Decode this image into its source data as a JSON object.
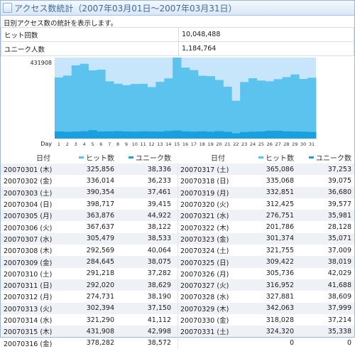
{
  "title": "アクセス数統計（2007年03月01日～2007年03月31日）",
  "description": "日別アクセス数の統計を表示します。",
  "summary": [
    {
      "label": "ヒット回数",
      "value": "10,048,488"
    },
    {
      "label": "ユニーク人数",
      "value": "1,184,764"
    }
  ],
  "colors": {
    "hits": "#5cc3ee",
    "uniques": "#1aa0de",
    "plot_bg": "#c7e6fb"
  },
  "chart_data": {
    "type": "bar",
    "ymax_label": "431908",
    "xlabel": "Day",
    "ylim": [
      0,
      431908
    ],
    "categories": [
      "1",
      "2",
      "3",
      "4",
      "5",
      "6",
      "7",
      "8",
      "9",
      "10",
      "11",
      "12",
      "13",
      "14",
      "15",
      "16",
      "17",
      "18",
      "19",
      "20",
      "21",
      "22",
      "23",
      "24",
      "25",
      "26",
      "27",
      "28",
      "29",
      "30",
      "31"
    ],
    "series": [
      {
        "key": "hits",
        "values": [
          325856,
          336014,
          390354,
          398717,
          363876,
          367637,
          305479,
          292569,
          284645,
          291218,
          292020,
          274731,
          302394,
          321290,
          431908,
          378282,
          365086,
          335068,
          332851,
          312425,
          276751,
          201786,
          301374,
          321755,
          309422,
          305736,
          316952,
          327881,
          342063,
          318028,
          324320
        ]
      },
      {
        "key": "uniques",
        "values": [
          38336,
          36233,
          37461,
          39415,
          44922,
          38122,
          38533,
          40064,
          38075,
          37282,
          38629,
          38190,
          37150,
          41112,
          42998,
          38572,
          37253,
          39075,
          36680,
          39577,
          35981,
          28128,
          35071,
          37009,
          38019,
          42029,
          41688,
          38609,
          37999,
          37214,
          35338
        ]
      }
    ]
  },
  "table": {
    "headers": {
      "date": "日付",
      "hits": "ヒット数",
      "uniques": "ユニーク数"
    },
    "rows": [
      [
        {
          "date": "20070301 (木)",
          "hits": "325,856",
          "uniques": "38,336"
        },
        {
          "date": "20070317 (土)",
          "hits": "365,086",
          "uniques": "37,253"
        }
      ],
      [
        {
          "date": "20070302 (金)",
          "hits": "336,014",
          "uniques": "36,233"
        },
        {
          "date": "20070318 (日)",
          "hits": "335,068",
          "uniques": "39,075"
        }
      ],
      [
        {
          "date": "20070303 (土)",
          "hits": "390,354",
          "uniques": "37,461"
        },
        {
          "date": "20070319 (月)",
          "hits": "332,851",
          "uniques": "36,680"
        }
      ],
      [
        {
          "date": "20070304 (日)",
          "hits": "398,717",
          "uniques": "39,415"
        },
        {
          "date": "20070320 (火)",
          "hits": "312,425",
          "uniques": "39,577"
        }
      ],
      [
        {
          "date": "20070305 (月)",
          "hits": "363,876",
          "uniques": "44,922"
        },
        {
          "date": "20070321 (水)",
          "hits": "276,751",
          "uniques": "35,981"
        }
      ],
      [
        {
          "date": "20070306 (火)",
          "hits": "367,637",
          "uniques": "38,122"
        },
        {
          "date": "20070322 (木)",
          "hits": "201,786",
          "uniques": "28,128"
        }
      ],
      [
        {
          "date": "20070307 (水)",
          "hits": "305,479",
          "uniques": "38,533"
        },
        {
          "date": "20070323 (金)",
          "hits": "301,374",
          "uniques": "35,071"
        }
      ],
      [
        {
          "date": "20070308 (木)",
          "hits": "292,569",
          "uniques": "40,064"
        },
        {
          "date": "20070324 (土)",
          "hits": "321,755",
          "uniques": "37,009"
        }
      ],
      [
        {
          "date": "20070309 (金)",
          "hits": "284,645",
          "uniques": "38,075"
        },
        {
          "date": "20070325 (日)",
          "hits": "309,422",
          "uniques": "38,019"
        }
      ],
      [
        {
          "date": "20070310 (土)",
          "hits": "291,218",
          "uniques": "37,282"
        },
        {
          "date": "20070326 (月)",
          "hits": "305,736",
          "uniques": "42,029"
        }
      ],
      [
        {
          "date": "20070311 (日)",
          "hits": "292,020",
          "uniques": "38,629"
        },
        {
          "date": "20070327 (火)",
          "hits": "316,952",
          "uniques": "41,688"
        }
      ],
      [
        {
          "date": "20070312 (月)",
          "hits": "274,731",
          "uniques": "38,190"
        },
        {
          "date": "20070328 (水)",
          "hits": "327,881",
          "uniques": "38,609"
        }
      ],
      [
        {
          "date": "20070313 (火)",
          "hits": "302,394",
          "uniques": "37,150"
        },
        {
          "date": "20070329 (木)",
          "hits": "342,063",
          "uniques": "37,999"
        }
      ],
      [
        {
          "date": "20070314 (水)",
          "hits": "321,290",
          "uniques": "41,112"
        },
        {
          "date": "20070330 (金)",
          "hits": "318,028",
          "uniques": "37,214"
        }
      ],
      [
        {
          "date": "20070315 (木)",
          "hits": "431,908",
          "uniques": "42,998"
        },
        {
          "date": "20070331 (土)",
          "hits": "324,320",
          "uniques": "35,338"
        }
      ],
      [
        {
          "date": "20070316 (金)",
          "hits": "378,282",
          "uniques": "38,572"
        },
        {
          "date": "",
          "hits": "0",
          "uniques": "0"
        }
      ]
    ]
  }
}
